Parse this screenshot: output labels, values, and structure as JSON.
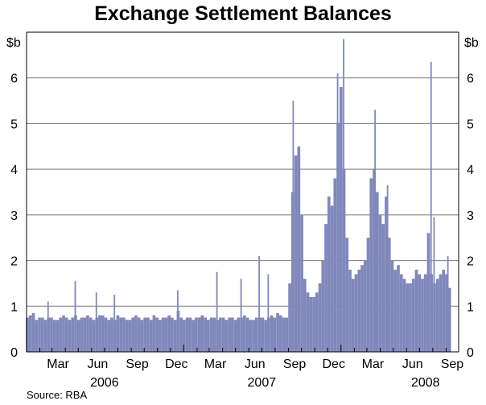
{
  "chart_data": {
    "type": "bar",
    "title": "Exchange Settlement Balances",
    "y_unit_left": "$b",
    "y_unit_right": "$b",
    "ylim": [
      0,
      7
    ],
    "yticks": [
      "0",
      "1",
      "2",
      "3",
      "4",
      "5",
      "6"
    ],
    "grid": true,
    "x_month_labels": [
      "Mar",
      "Jun",
      "Sep",
      "Dec",
      "Mar",
      "Jun",
      "Sep",
      "Dec",
      "Mar",
      "Jun",
      "Sep"
    ],
    "x_year_labels": [
      "2006",
      "2007",
      "2008"
    ],
    "series_color": "#8088bb",
    "weekly_x": [
      "2006-01-06",
      "2006-01-13",
      "2006-01-20",
      "2006-01-27",
      "2006-02-03",
      "2006-02-10",
      "2006-02-17",
      "2006-02-24",
      "2006-03-03",
      "2006-03-10",
      "2006-03-17",
      "2006-03-24",
      "2006-03-31",
      "2006-04-07",
      "2006-04-14",
      "2006-04-21",
      "2006-04-28",
      "2006-05-05",
      "2006-05-12",
      "2006-05-19",
      "2006-05-26",
      "2006-06-02",
      "2006-06-09",
      "2006-06-16",
      "2006-06-23",
      "2006-06-30",
      "2006-07-07",
      "2006-07-14",
      "2006-07-21",
      "2006-07-28",
      "2006-08-04",
      "2006-08-11",
      "2006-08-18",
      "2006-08-25",
      "2006-09-01",
      "2006-09-08",
      "2006-09-15",
      "2006-09-22",
      "2006-09-29",
      "2006-10-06",
      "2006-10-13",
      "2006-10-20",
      "2006-10-27",
      "2006-11-03",
      "2006-11-10",
      "2006-11-17",
      "2006-11-24",
      "2006-12-01",
      "2006-12-08",
      "2006-12-15",
      "2006-12-22",
      "2006-12-29",
      "2007-01-05",
      "2007-01-12",
      "2007-01-19",
      "2007-01-26",
      "2007-02-02",
      "2007-02-09",
      "2007-02-16",
      "2007-02-23",
      "2007-03-02",
      "2007-03-09",
      "2007-03-16",
      "2007-03-23",
      "2007-03-30",
      "2007-04-06",
      "2007-04-13",
      "2007-04-20",
      "2007-04-27",
      "2007-05-04",
      "2007-05-11",
      "2007-05-18",
      "2007-05-25",
      "2007-06-01",
      "2007-06-08",
      "2007-06-15",
      "2007-06-22",
      "2007-06-29",
      "2007-07-06",
      "2007-07-13",
      "2007-07-20",
      "2007-07-27",
      "2007-08-03",
      "2007-08-10",
      "2007-08-17",
      "2007-08-24",
      "2007-08-31",
      "2007-09-07",
      "2007-09-14",
      "2007-09-21",
      "2007-09-28",
      "2007-10-05",
      "2007-10-12",
      "2007-10-19",
      "2007-10-26",
      "2007-11-02",
      "2007-11-09",
      "2007-11-16",
      "2007-11-23",
      "2007-11-30",
      "2007-12-07",
      "2007-12-14",
      "2007-12-21",
      "2007-12-28",
      "2008-01-04",
      "2008-01-11",
      "2008-01-18",
      "2008-01-25",
      "2008-02-01",
      "2008-02-08",
      "2008-02-15",
      "2008-02-22",
      "2008-02-29",
      "2008-03-07",
      "2008-03-14",
      "2008-03-21",
      "2008-03-28",
      "2008-04-04",
      "2008-04-11",
      "2008-04-18",
      "2008-04-25",
      "2008-05-02",
      "2008-05-09",
      "2008-05-16",
      "2008-05-23",
      "2008-05-30",
      "2008-06-06",
      "2008-06-13",
      "2008-06-20",
      "2008-06-27",
      "2008-07-04",
      "2008-07-11",
      "2008-07-18",
      "2008-07-25",
      "2008-08-01",
      "2008-08-08",
      "2008-08-15",
      "2008-08-22",
      "2008-08-29",
      "2008-09-05",
      "2008-09-12",
      "2008-09-19"
    ],
    "weekly_values": [
      0.75,
      0.8,
      0.85,
      0.7,
      0.75,
      0.75,
      0.7,
      0.75,
      0.75,
      0.7,
      0.7,
      0.75,
      0.8,
      0.75,
      0.7,
      0.75,
      0.8,
      0.7,
      0.75,
      0.75,
      0.8,
      0.75,
      0.7,
      0.75,
      0.8,
      0.8,
      0.75,
      0.7,
      0.75,
      0.7,
      0.8,
      0.75,
      0.75,
      0.7,
      0.7,
      0.75,
      0.8,
      0.75,
      0.7,
      0.75,
      0.75,
      0.7,
      0.8,
      0.75,
      0.7,
      0.75,
      0.75,
      0.8,
      0.75,
      0.7,
      0.9,
      0.75,
      0.7,
      0.75,
      0.75,
      0.7,
      0.75,
      0.75,
      0.8,
      0.75,
      0.7,
      0.75,
      0.75,
      0.7,
      0.75,
      0.75,
      0.7,
      0.75,
      0.75,
      0.7,
      0.75,
      0.75,
      0.8,
      0.75,
      0.7,
      0.7,
      0.75,
      0.75,
      0.75,
      0.7,
      0.75,
      0.8,
      0.75,
      0.85,
      0.8,
      0.75,
      0.75,
      1.5,
      3.5,
      4.3,
      4.5,
      3.0,
      1.6,
      1.3,
      1.2,
      1.2,
      1.3,
      1.5,
      2.0,
      2.8,
      3.4,
      3.2,
      3.8,
      5.0,
      5.8,
      4.0,
      2.5,
      1.8,
      1.6,
      1.7,
      1.8,
      1.9,
      2.0,
      2.5,
      3.8,
      4.0,
      3.5,
      3.0,
      2.8,
      3.4,
      2.5,
      2.0,
      1.8,
      1.9,
      1.7,
      1.6,
      1.5,
      1.5,
      1.6,
      1.8,
      1.7,
      1.6,
      1.7,
      2.6,
      1.7,
      1.5,
      1.6,
      1.7,
      1.8,
      1.7,
      1.4
    ],
    "spikes": [
      {
        "x": "2006-02-20",
        "value": 1.1
      },
      {
        "x": "2006-04-24",
        "value": 1.55
      },
      {
        "x": "2006-06-12",
        "value": 1.3
      },
      {
        "x": "2006-07-24",
        "value": 1.25
      },
      {
        "x": "2006-12-18",
        "value": 1.35
      },
      {
        "x": "2007-03-19",
        "value": 1.75
      },
      {
        "x": "2007-05-14",
        "value": 1.6
      },
      {
        "x": "2007-06-25",
        "value": 2.1
      },
      {
        "x": "2007-07-16",
        "value": 1.7
      },
      {
        "x": "2007-09-12",
        "value": 5.5
      },
      {
        "x": "2007-12-24",
        "value": 6.1
      },
      {
        "x": "2008-01-07",
        "value": 6.85
      },
      {
        "x": "2008-03-20",
        "value": 5.3
      },
      {
        "x": "2008-04-18",
        "value": 3.65
      },
      {
        "x": "2008-07-28",
        "value": 6.35
      },
      {
        "x": "2008-08-04",
        "value": 2.95
      },
      {
        "x": "2008-09-05",
        "value": 2.1
      }
    ],
    "source": "Source: RBA"
  }
}
